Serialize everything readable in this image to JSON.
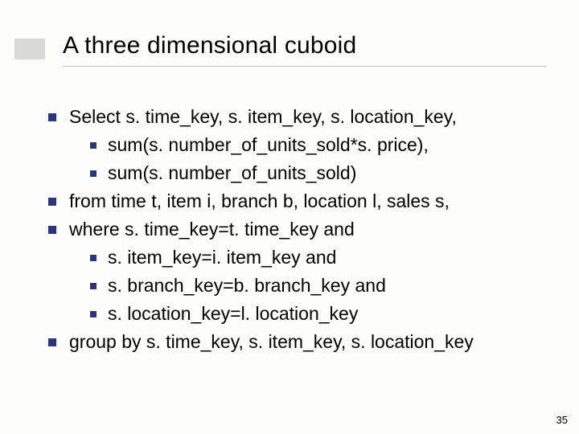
{
  "slide": {
    "title": "A three dimensional cuboid",
    "page_number": "35",
    "colors": {
      "bullet": "#293582",
      "accent_bar": "#d9d9d9",
      "underline": "#c0c0c0",
      "background": "#fdfdfc",
      "text": "#000000"
    },
    "typography": {
      "title_fontsize": 30,
      "body_fontsize": 23,
      "pagenum_fontsize": 13,
      "font_family": "Verdana"
    },
    "bullets": [
      {
        "level": 1,
        "text": "Select s. time_key, s. item_key, s. location_key,"
      },
      {
        "level": 2,
        "text": "sum(s. number_of_units_sold*s. price),"
      },
      {
        "level": 2,
        "text": "sum(s. number_of_units_sold)"
      },
      {
        "level": 1,
        "text": "from time t, item i, branch b, location l, sales s,"
      },
      {
        "level": 1,
        "text": "where s. time_key=t. time_key and"
      },
      {
        "level": 2,
        "text": "s. item_key=i. item_key and"
      },
      {
        "level": 2,
        "text": "s. branch_key=b. branch_key and"
      },
      {
        "level": 2,
        "text": "s. location_key=l. location_key"
      },
      {
        "level": 1,
        "text": "group by s. time_key, s. item_key, s. location_key"
      }
    ]
  }
}
